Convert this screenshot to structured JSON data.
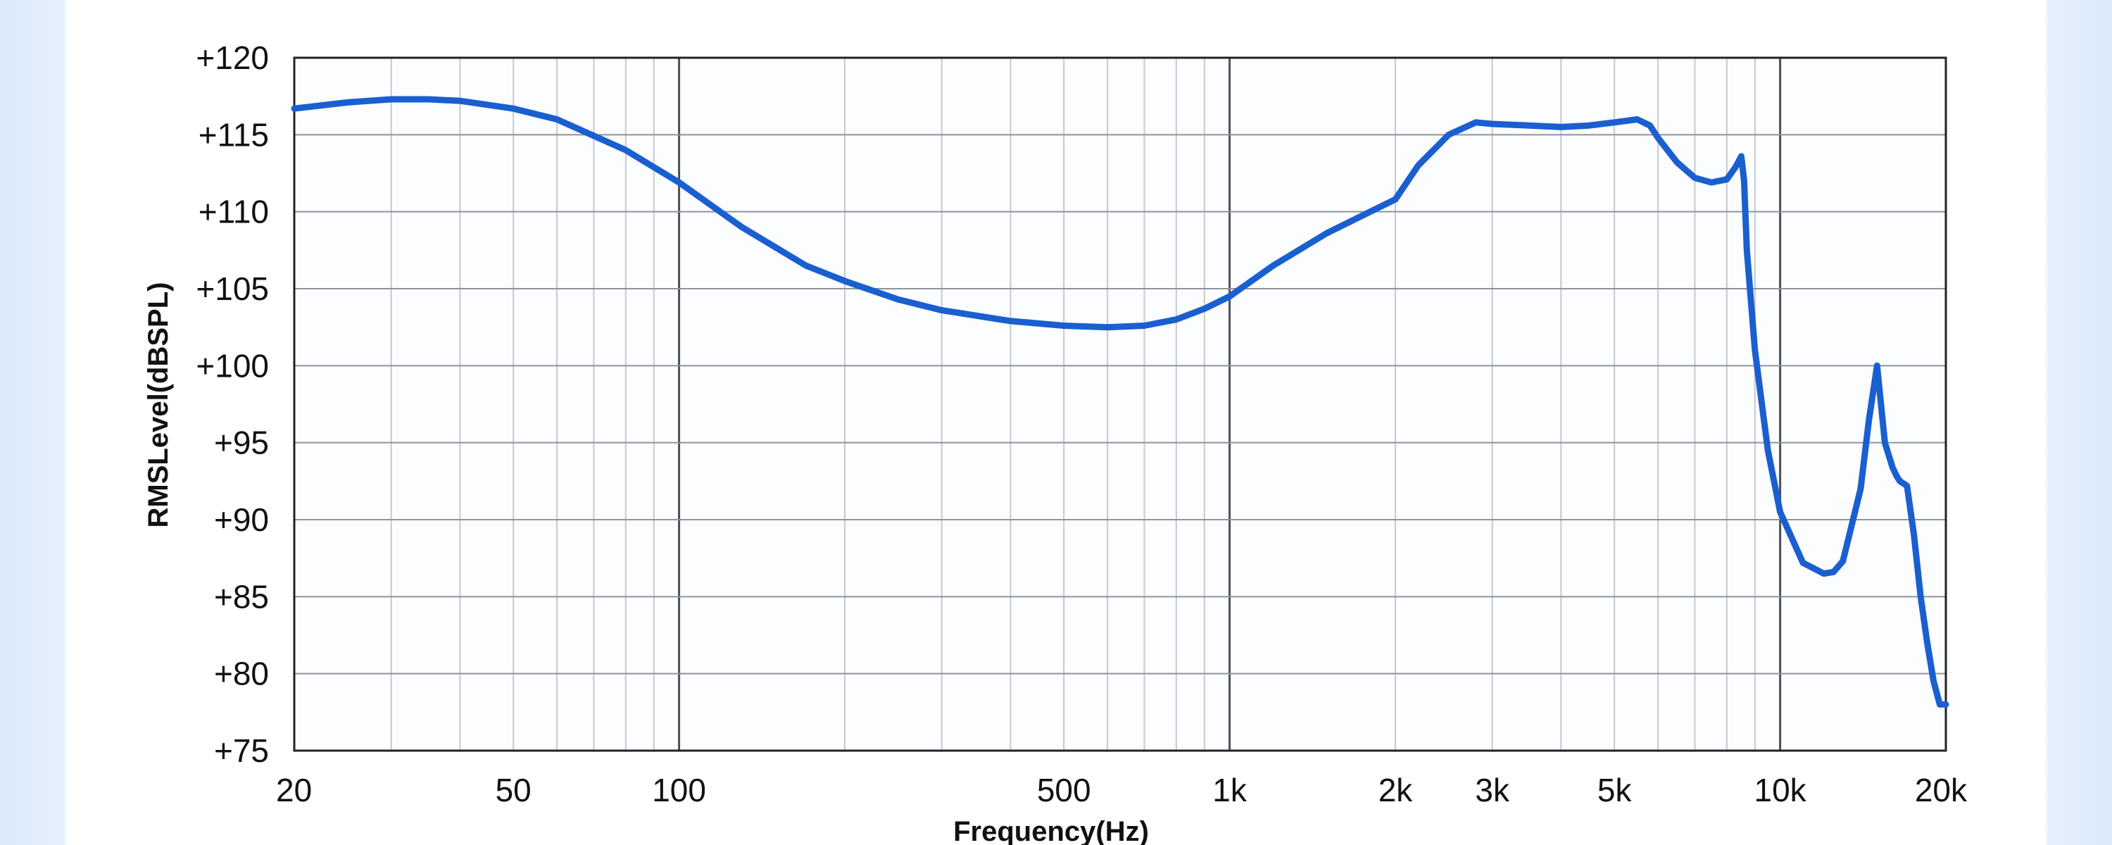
{
  "chart_data": {
    "type": "line",
    "title": "",
    "xlabel": "Frequency(Hz)",
    "ylabel": "RMSLevel(dBSPL)",
    "x_scale": "log",
    "xlim": [
      20,
      20000
    ],
    "ylim": [
      75,
      120
    ],
    "grid": true,
    "legend": "none",
    "x_ticks": [
      {
        "value": 20,
        "label": "20"
      },
      {
        "value": 50,
        "label": "50"
      },
      {
        "value": 100,
        "label": "100"
      },
      {
        "value": 500,
        "label": "500"
      },
      {
        "value": 1000,
        "label": "1k"
      },
      {
        "value": 2000,
        "label": "2k"
      },
      {
        "value": 3000,
        "label": "3k"
      },
      {
        "value": 5000,
        "label": "5k"
      },
      {
        "value": 10000,
        "label": "10k"
      },
      {
        "value": 20000,
        "label": "20k"
      }
    ],
    "y_ticks": [
      {
        "value": 120,
        "label": "+120"
      },
      {
        "value": 115,
        "label": "+115"
      },
      {
        "value": 110,
        "label": "+110"
      },
      {
        "value": 105,
        "label": "+105"
      },
      {
        "value": 100,
        "label": "+100"
      },
      {
        "value": 95,
        "label": "+95"
      },
      {
        "value": 90,
        "label": "+90"
      },
      {
        "value": 85,
        "label": "+85"
      },
      {
        "value": 80,
        "label": "+80"
      },
      {
        "value": 75,
        "label": "+75"
      }
    ],
    "series": [
      {
        "color": "#1a5fd0",
        "x": [
          20,
          25,
          30,
          35,
          40,
          50,
          60,
          80,
          100,
          130,
          170,
          200,
          250,
          300,
          400,
          500,
          600,
          700,
          800,
          900,
          1000,
          1200,
          1500,
          1800,
          2000,
          2200,
          2500,
          2800,
          3000,
          3500,
          4000,
          4500,
          5000,
          5500,
          5800,
          6000,
          6500,
          7000,
          7500,
          8000,
          8300,
          8500,
          8600,
          8700,
          9000,
          9500,
          10000,
          11000,
          12000,
          12500,
          13000,
          14000,
          14500,
          15000,
          15500,
          16000,
          16300,
          16500,
          17000,
          17500,
          18000,
          18500,
          19000,
          19500,
          20000
        ],
        "y": [
          116.7,
          117.1,
          117.3,
          117.3,
          117.2,
          116.7,
          116.0,
          114.0,
          111.9,
          109.0,
          106.5,
          105.5,
          104.3,
          103.6,
          102.9,
          102.6,
          102.5,
          102.6,
          103.0,
          103.7,
          104.5,
          106.5,
          108.6,
          110.0,
          110.8,
          113.0,
          115.0,
          115.8,
          115.7,
          115.6,
          115.5,
          115.6,
          115.8,
          116.0,
          115.6,
          114.8,
          113.2,
          112.2,
          111.9,
          112.1,
          112.9,
          113.6,
          112.0,
          107.5,
          101.0,
          94.5,
          90.5,
          87.2,
          86.5,
          86.6,
          87.3,
          92.0,
          96.5,
          100.0,
          95.0,
          93.4,
          92.8,
          92.5,
          92.2,
          89.0,
          85.0,
          82.0,
          79.5,
          78.0,
          78.0
        ]
      }
    ]
  }
}
